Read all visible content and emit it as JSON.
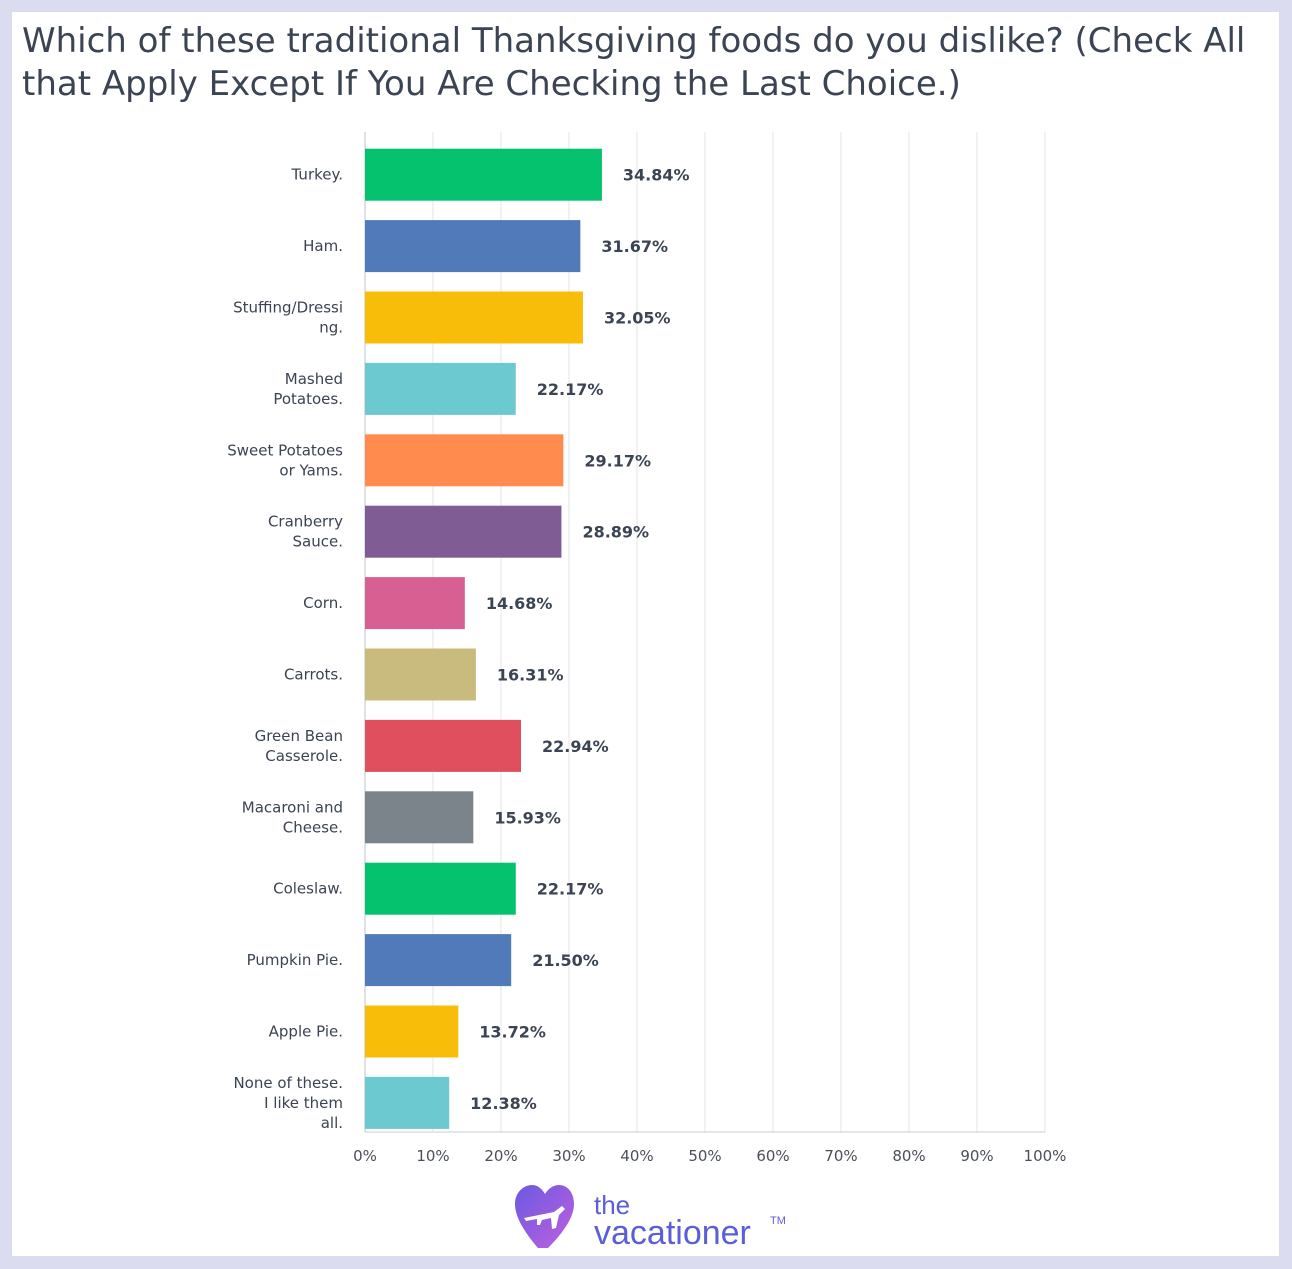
{
  "title": "Which of these traditional Thanksgiving foods do you dislike? (Check All that Apply Except If You Are Checking the Last Choice.)",
  "brand": {
    "line1": "the",
    "line2": "vacationer",
    "tm": "TM"
  },
  "colors": {
    "page_background": "#dcdcf0",
    "card_background": "#ffffff",
    "gridline": "#e4e4e8",
    "text": "#3b4452",
    "brand_text": "#5a5fd6",
    "logo_gradient": [
      "#6a5ae0",
      "#b85ce0"
    ]
  },
  "chart_data": {
    "type": "bar",
    "orientation": "horizontal",
    "title": "Which of these traditional Thanksgiving foods do you dislike? (Check All that Apply Except If You Are Checking the Last Choice.)",
    "xlabel": "",
    "ylabel": "",
    "xlim": [
      0,
      100
    ],
    "x_ticks": [
      "0%",
      "10%",
      "20%",
      "30%",
      "40%",
      "50%",
      "60%",
      "70%",
      "80%",
      "90%",
      "100%"
    ],
    "grid": true,
    "categories": [
      [
        "Turkey."
      ],
      [
        "Ham."
      ],
      [
        "Stuffing/Dressi",
        "ng."
      ],
      [
        "Mashed",
        "Potatoes."
      ],
      [
        "Sweet Potatoes",
        "or Yams."
      ],
      [
        "Cranberry",
        "Sauce."
      ],
      [
        "Corn."
      ],
      [
        "Carrots."
      ],
      [
        "Green Bean",
        "Casserole."
      ],
      [
        "Macaroni and",
        "Cheese."
      ],
      [
        "Coleslaw."
      ],
      [
        "Pumpkin Pie."
      ],
      [
        "Apple Pie."
      ],
      [
        "None of these.",
        "I like them",
        "all."
      ]
    ],
    "values": [
      34.84,
      31.67,
      32.05,
      22.17,
      29.17,
      28.89,
      14.68,
      16.31,
      22.94,
      15.93,
      22.17,
      21.5,
      13.72,
      12.38
    ],
    "value_labels": [
      "34.84%",
      "31.67%",
      "32.05%",
      "22.17%",
      "29.17%",
      "28.89%",
      "14.68%",
      "16.31%",
      "22.94%",
      "15.93%",
      "22.17%",
      "21.50%",
      "13.72%",
      "12.38%"
    ],
    "colors": [
      "#05c26f",
      "#507bb8",
      "#f8bd08",
      "#6dc9d0",
      "#ff8b4f",
      "#7f5c93",
      "#d85f92",
      "#c9bb7d",
      "#df4f5e",
      "#7b848a",
      "#05c26f",
      "#507bb8",
      "#f8bd08",
      "#6dc9d0"
    ]
  }
}
